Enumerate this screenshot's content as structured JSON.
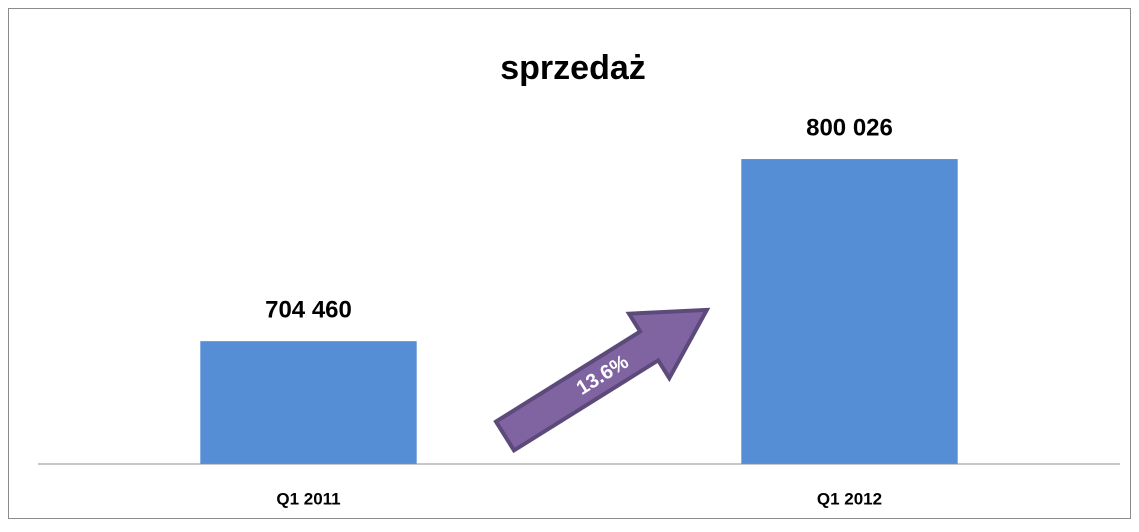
{
  "chart_data": {
    "type": "bar",
    "title": "sprzedaż",
    "categories": [
      "Q1 2011",
      "Q1 2012"
    ],
    "values": [
      704460,
      800026
    ],
    "value_labels": [
      "704 460",
      "800 026"
    ],
    "color": "#558ed5",
    "ylim": [
      640000,
      820000
    ],
    "annotation": "13.6%"
  }
}
